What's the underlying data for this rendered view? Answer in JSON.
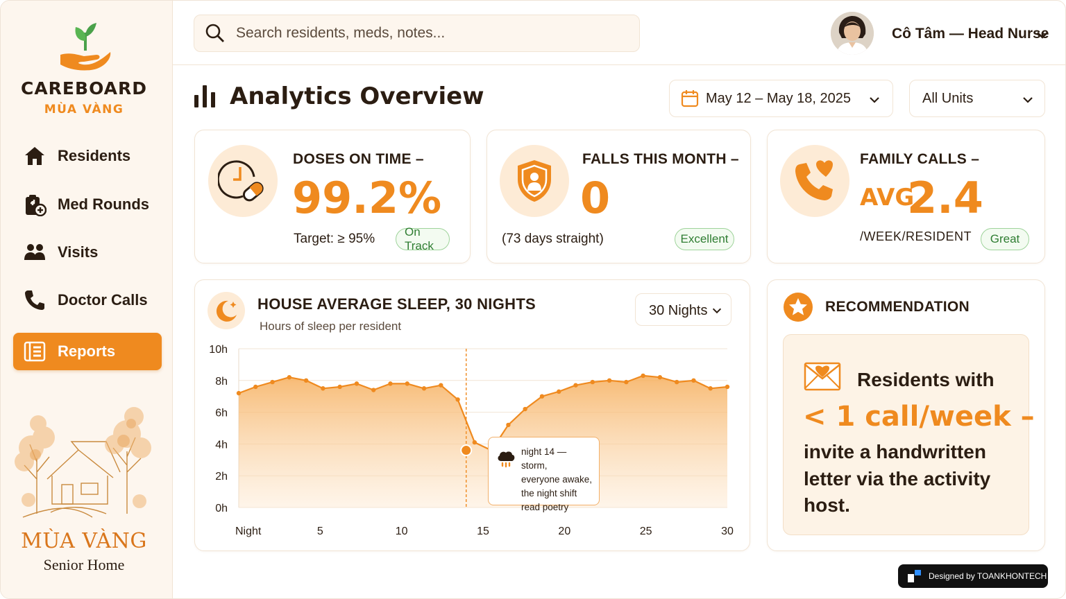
{
  "brand": {
    "title": "CAREBOARD",
    "subtitle": "MÙA VÀNG"
  },
  "sidebar": {
    "items": [
      {
        "label": "Residents",
        "icon": "home-icon",
        "active": false
      },
      {
        "label": "Med Rounds",
        "icon": "medical-clipboard-icon",
        "active": false
      },
      {
        "label": "Visits",
        "icon": "people-icon",
        "active": false
      },
      {
        "label": "Doctor Calls",
        "icon": "phone-icon",
        "active": false
      },
      {
        "label": "Reports",
        "icon": "reports-icon",
        "active": true
      }
    ],
    "footer": {
      "name": "MÙA VÀNG",
      "sub": "Senior Home"
    }
  },
  "search": {
    "placeholder": "Search residents, meds, notes..."
  },
  "user": {
    "name": "Cô Tâm — Head Nurse"
  },
  "header": {
    "title": "Analytics Overview",
    "date_range": "May 12 – May 18, 2025",
    "unit_filter": "All Units"
  },
  "kpis": [
    {
      "label": "DOSES ON TIME –",
      "value": "99.2%",
      "prefix": "",
      "footer": "Target: ≥ 95%",
      "badge": "On Track",
      "icon": "clock-pill-icon"
    },
    {
      "label": "FALLS THIS MONTH –",
      "value": "0",
      "prefix": "",
      "footer": "(73 days straight)",
      "badge": "Excellent",
      "icon": "shield-person-icon"
    },
    {
      "label": "FAMILY CALLS –",
      "value": "2.4",
      "prefix": "AVG",
      "footer": "/WEEK/RESIDENT",
      "badge": "Great",
      "icon": "phone-heart-icon"
    }
  ],
  "sleep_chart": {
    "title": "HOUSE AVERAGE SLEEP, 30 NIGHTS",
    "subtitle": "Hours of sleep per resident",
    "range_select": "30 Nights",
    "tooltip": [
      "night 14 — storm,",
      "everyone awake,",
      "the night shift",
      "read poetry"
    ]
  },
  "chart_data": {
    "type": "area",
    "title": "HOUSE AVERAGE SLEEP, 30 NIGHTS",
    "subtitle": "Hours of sleep per resident",
    "x": [
      1,
      2,
      3,
      4,
      5,
      6,
      7,
      8,
      9,
      10,
      11,
      12,
      13,
      14,
      15,
      16,
      17,
      18,
      19,
      20,
      21,
      22,
      23,
      24,
      25,
      26,
      27,
      28,
      29,
      30
    ],
    "x_tick_labels": [
      "Night",
      "5",
      "10",
      "15",
      "20",
      "25",
      "30"
    ],
    "x_tick_values": [
      0,
      5,
      10,
      15,
      20,
      25,
      30
    ],
    "y_tick_labels": [
      "0h",
      "2h",
      "4h",
      "6h",
      "8h",
      "10h"
    ],
    "y_tick_values": [
      0,
      2,
      4,
      6,
      8,
      10
    ],
    "ylim": [
      0,
      10
    ],
    "series": [
      {
        "values": [
          7.2,
          7.6,
          7.9,
          8.2,
          8.0,
          7.5,
          7.6,
          7.8,
          7.4,
          7.8,
          7.8,
          7.5,
          7.7,
          6.8,
          4.1,
          3.6,
          5.2,
          6.2,
          7.0,
          7.3,
          7.7,
          7.9,
          8.0,
          7.9,
          8.3,
          8.2,
          7.9,
          8.0,
          7.5,
          7.6
        ],
        "note": ""
      }
    ],
    "highlight": {
      "x": 14.5,
      "y": 3.6
    },
    "grid": true
  },
  "recommendation": {
    "title": "RECOMMENDATION",
    "line1": "Residents with",
    "line2": "< 1 call/week –",
    "rest": "invite a handwritten letter via the activity host."
  },
  "credit": {
    "text": "Designed by TOANKHONTECH"
  },
  "colors": {
    "accent": "#ef8a1f",
    "success": "#2f7d32",
    "background": "#fdf6ee"
  }
}
